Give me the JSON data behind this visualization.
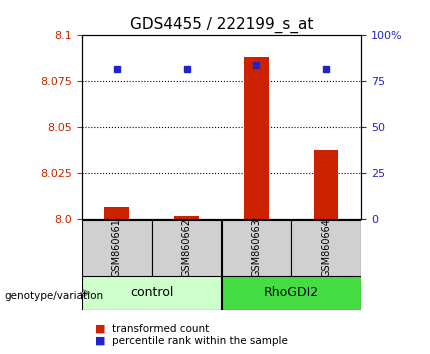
{
  "title": "GDS4455 / 222199_s_at",
  "samples": [
    "GSM860661",
    "GSM860662",
    "GSM860663",
    "GSM860664"
  ],
  "groups": [
    "control",
    "control",
    "RhoGDI2",
    "RhoGDI2"
  ],
  "bar_values": [
    8.007,
    8.002,
    8.088,
    8.038
  ],
  "percentile_values": [
    82,
    82,
    84,
    82
  ],
  "ylim_left": [
    8.0,
    8.1
  ],
  "yticks_left": [
    8.0,
    8.025,
    8.05,
    8.075,
    8.1
  ],
  "yticks_right": [
    0,
    25,
    50,
    75,
    100
  ],
  "bar_color": "#cc2200",
  "dot_color": "#2222cc",
  "control_color": "#ccffcc",
  "rho_color": "#44dd44",
  "label_color_left": "#cc2200",
  "label_color_right": "#2222cc",
  "legend_bar_label": "transformed count",
  "legend_dot_label": "percentile rank within the sample",
  "genotype_label": "genotype/variation"
}
